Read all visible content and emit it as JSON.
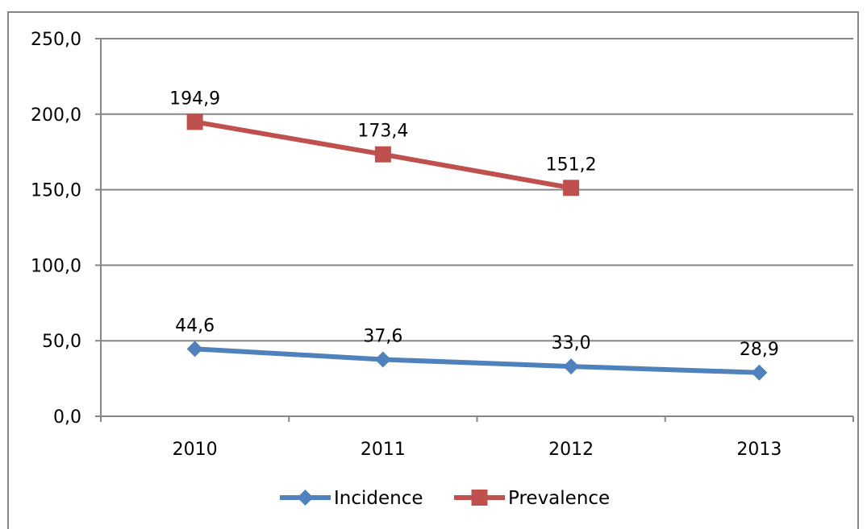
{
  "chart_data": {
    "type": "line",
    "categories": [
      "2010",
      "2011",
      "2012",
      "2013"
    ],
    "series": [
      {
        "name": "Incidence",
        "values": [
          44.6,
          37.6,
          33.0,
          28.9
        ],
        "labels": [
          "44,6",
          "37,6",
          "33,0",
          "28,9"
        ],
        "color": "#4F81BD",
        "marker": "diamond"
      },
      {
        "name": "Prevalence",
        "values": [
          194.9,
          173.4,
          151.2,
          null
        ],
        "labels": [
          "194,9",
          "173,4",
          "151,2",
          null
        ],
        "color": "#C0504D",
        "marker": "square"
      }
    ],
    "ylim": [
      0,
      250
    ],
    "yticks": [
      0,
      50,
      100,
      150,
      200,
      250
    ],
    "ytick_labels": [
      "0,0",
      "50,0",
      "100,0",
      "150,0",
      "200,0",
      "250,0"
    ],
    "grid": true,
    "legend": "bottom",
    "title": "",
    "xlabel": "",
    "ylabel": ""
  }
}
